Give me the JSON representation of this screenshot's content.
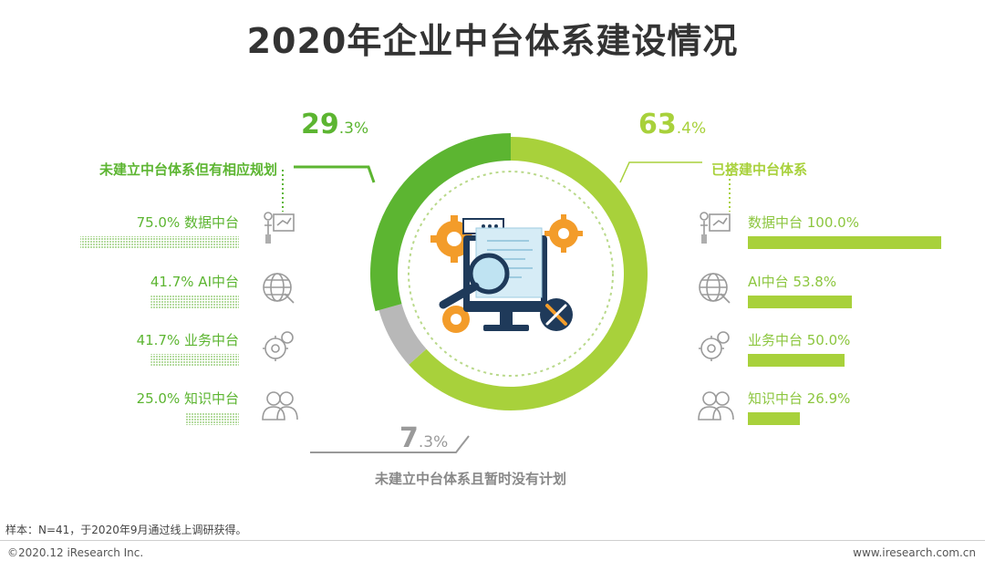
{
  "title": "2020年企业中台体系建设情况",
  "colors": {
    "dark_green": "#5cb531",
    "light_green": "#a8d13b",
    "gray": "#b8b8b8",
    "orange": "#f39c2a",
    "navy": "#1f3a5a"
  },
  "chart_data": {
    "type": "pie",
    "variant": "donut",
    "slices": [
      {
        "label": "已搭建中台体系",
        "value": 63.4,
        "display": "63.4%",
        "color": "#a8d13b"
      },
      {
        "label": "未建立中台体系且暂时没有计划",
        "value": 7.3,
        "display": "7.3%",
        "color": "#b8b8b8"
      },
      {
        "label": "未建立中台体系但有相应规划",
        "value": 29.3,
        "display": "29.3%",
        "color": "#5cb531"
      }
    ],
    "breakdowns": [
      {
        "group": "未建立中台体系但有相应规划",
        "type": "bar",
        "categories": [
          "数据中台",
          "AI中台",
          "业务中台",
          "知识中台"
        ],
        "values": [
          75.0,
          41.7,
          41.7,
          25.0
        ],
        "labels": [
          "75.0% 数据中台",
          "41.7% AI中台",
          "41.7% 业务中台",
          "25.0% 知识中台"
        ]
      },
      {
        "group": "已搭建中台体系",
        "type": "bar",
        "categories": [
          "数据中台",
          "AI中台",
          "业务中台",
          "知识中台"
        ],
        "values": [
          100.0,
          53.8,
          50.0,
          26.9
        ],
        "labels": [
          "数据中台 100.0%",
          "AI中台 53.8%",
          "业务中台 50.0%",
          "知识中台 26.9%"
        ]
      }
    ]
  },
  "icons": [
    "presentation-icon",
    "globe-icon",
    "gear-icon",
    "people-icon",
    "magnifier-icon",
    "monitor-icon",
    "wrench-icon"
  ],
  "footer": {
    "note": "样本：N=41，于2020年9月通过线上调研获得。",
    "copyright": "©2020.12 iResearch Inc.",
    "website": "www.iresearch.com.cn"
  }
}
